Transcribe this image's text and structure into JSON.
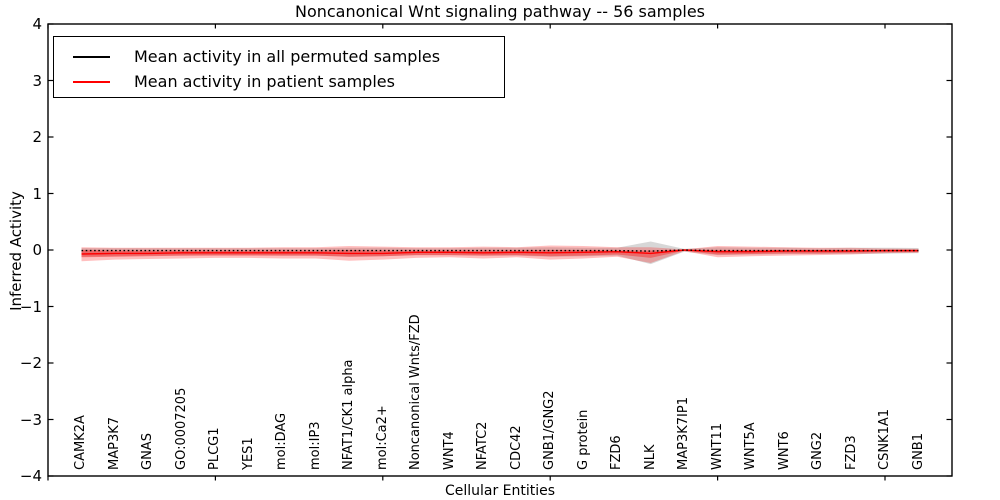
{
  "title": "Noncanonical Wnt signaling pathway -- 56 samples",
  "axes": {
    "ylabel": "Inferred Activity",
    "xlabel": "Cellular Entities",
    "ytick_labels": [
      "4",
      "3",
      "2",
      "1",
      "0",
      "−1",
      "−2",
      "−3",
      "−4"
    ],
    "ytick_values": [
      4,
      3,
      2,
      1,
      0,
      -1,
      -2,
      -3,
      -4
    ],
    "xtick_values": [
      0,
      5,
      10,
      15,
      20,
      25
    ]
  },
  "legend": {
    "items": [
      {
        "label": "Mean activity in all permuted samples",
        "color": "#000000"
      },
      {
        "label": "Mean activity in patient samples",
        "color": "#ff0000"
      }
    ]
  },
  "colors": {
    "permuted_line": "#000000",
    "patient_line": "#ff0000",
    "permuted_band": "rgba(130,130,130,0.32)",
    "patient_band_outer": "rgba(255,0,0,0.25)",
    "patient_band_inner": "rgba(255,0,0,0.35)",
    "axis": "#000000"
  },
  "chart_data": {
    "type": "line",
    "title": "Noncanonical Wnt signaling pathway -- 56 samples",
    "xlabel": "Cellular Entities",
    "ylabel": "Inferred Activity",
    "ylim": [
      -4,
      4
    ],
    "xlim": [
      0,
      27
    ],
    "grid": false,
    "legend_position": "upper left",
    "x": [
      1,
      2,
      3,
      4,
      5,
      6,
      7,
      8,
      9,
      10,
      11,
      12,
      13,
      14,
      15,
      16,
      17,
      18,
      19,
      20,
      21,
      22,
      23,
      24,
      25,
      26
    ],
    "categories": [
      "CAMK2A",
      "MAP3K7",
      "GNAS",
      "GO:0007205",
      "PLCG1",
      "YES1",
      "mol:DAG",
      "mol:IP3",
      "NFAT1/CK1 alpha",
      "mol:Ca2+",
      "Noncanonical Wnts/FZD",
      "WNT4",
      "NFATC2",
      "CDC42",
      "GNB1/GNG2",
      "G protein",
      "FZD6",
      "NLK",
      "MAP3K7IP1",
      "WNT11",
      "WNT5A",
      "WNT6",
      "GNG2",
      "FZD3",
      "CSNK1A1",
      "GNB1"
    ],
    "series": [
      {
        "name": "Mean activity in all permuted samples",
        "kind": "line",
        "style": "dotted",
        "color": "#000000",
        "values": [
          -0.01,
          -0.01,
          -0.01,
          -0.01,
          -0.01,
          -0.01,
          -0.01,
          -0.01,
          -0.01,
          -0.01,
          -0.01,
          -0.01,
          -0.01,
          -0.01,
          -0.01,
          -0.01,
          -0.01,
          -0.02,
          0.0,
          -0.01,
          -0.01,
          -0.01,
          -0.01,
          -0.01,
          -0.01,
          -0.01
        ]
      },
      {
        "name": "Mean activity in patient samples",
        "kind": "line",
        "style": "solid",
        "color": "#ff0000",
        "values": [
          -0.07,
          -0.06,
          -0.06,
          -0.05,
          -0.05,
          -0.05,
          -0.05,
          -0.05,
          -0.06,
          -0.06,
          -0.04,
          -0.04,
          -0.05,
          -0.04,
          -0.05,
          -0.04,
          -0.03,
          -0.06,
          0.0,
          -0.03,
          -0.03,
          -0.02,
          -0.02,
          -0.02,
          -0.01,
          -0.01
        ]
      },
      {
        "name": "Permuted samples spread",
        "kind": "band",
        "color": "rgba(130,130,130,0.32)",
        "upper": [
          0.03,
          0.03,
          0.03,
          0.03,
          0.03,
          0.03,
          0.03,
          0.03,
          0.04,
          0.04,
          0.03,
          0.03,
          0.04,
          0.04,
          0.05,
          0.04,
          0.04,
          0.15,
          0.02,
          0.05,
          0.04,
          0.04,
          0.03,
          0.04,
          0.04,
          0.035
        ],
        "lower": [
          -0.12,
          -0.11,
          -0.1,
          -0.1,
          -0.09,
          -0.09,
          -0.1,
          -0.1,
          -0.12,
          -0.11,
          -0.09,
          -0.09,
          -0.1,
          -0.1,
          -0.12,
          -0.11,
          -0.1,
          -0.25,
          -0.03,
          -0.09,
          -0.08,
          -0.07,
          -0.07,
          -0.07,
          -0.065,
          -0.055
        ]
      },
      {
        "name": "Patient samples spread (outer)",
        "kind": "band",
        "color": "rgba(255,0,0,0.25)",
        "upper": [
          0.05,
          0.04,
          0.04,
          0.04,
          0.04,
          0.04,
          0.05,
          0.05,
          0.07,
          0.06,
          0.05,
          0.05,
          0.06,
          0.05,
          0.08,
          0.07,
          0.05,
          0.05,
          0.01,
          0.07,
          0.06,
          0.05,
          0.04,
          0.04,
          0.025,
          0.02
        ],
        "lower": [
          -0.2,
          -0.17,
          -0.16,
          -0.15,
          -0.14,
          -0.14,
          -0.15,
          -0.15,
          -0.19,
          -0.17,
          -0.14,
          -0.13,
          -0.15,
          -0.13,
          -0.17,
          -0.15,
          -0.12,
          -0.23,
          -0.02,
          -0.13,
          -0.11,
          -0.1,
          -0.09,
          -0.08,
          -0.055,
          -0.045
        ]
      },
      {
        "name": "Patient samples spread (inner)",
        "kind": "band",
        "color": "rgba(255,0,0,0.35)",
        "upper": [
          0.0,
          -0.01,
          -0.01,
          -0.01,
          -0.01,
          -0.01,
          -0.01,
          -0.01,
          0.0,
          -0.01,
          -0.01,
          -0.01,
          -0.01,
          -0.01,
          0.0,
          0.0,
          -0.01,
          -0.01,
          0.005,
          0.0,
          0.0,
          0.0,
          0.0,
          0.0,
          0.0,
          0.0
        ],
        "lower": [
          -0.13,
          -0.12,
          -0.11,
          -0.1,
          -0.1,
          -0.1,
          -0.1,
          -0.1,
          -0.12,
          -0.11,
          -0.09,
          -0.09,
          -0.1,
          -0.09,
          -0.11,
          -0.1,
          -0.08,
          -0.14,
          -0.01,
          -0.08,
          -0.07,
          -0.06,
          -0.06,
          -0.05,
          -0.04,
          -0.04
        ]
      }
    ]
  }
}
